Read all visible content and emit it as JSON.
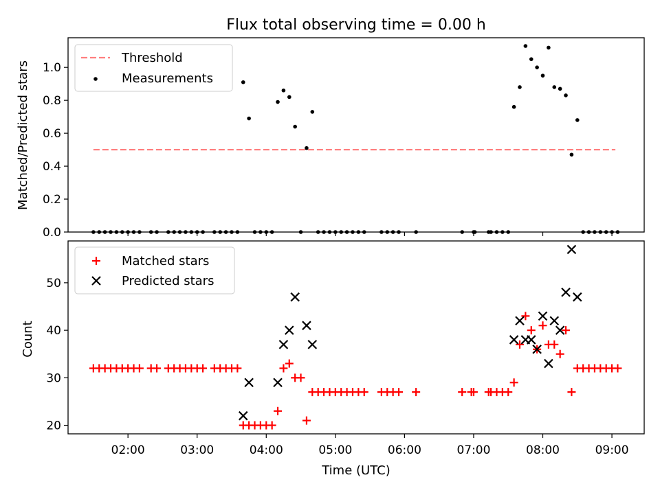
{
  "title": "Flux total observing time = 0.00 h",
  "xlabel": "Time (UTC)",
  "x_ticks": [
    "02:00",
    "03:00",
    "04:00",
    "05:00",
    "06:00",
    "07:00",
    "08:00",
    "09:00"
  ],
  "colors": {
    "threshold": "#ff7f7f",
    "measurements": "#000000",
    "matched": "#ff0000",
    "predicted": "#000000",
    "axes": "#000000",
    "background": "#ffffff"
  },
  "chart_data": [
    {
      "type": "scatter",
      "ylabel": "Matched/Predicted stars",
      "ylim": [
        0,
        1.18
      ],
      "xlim": [
        "01:08",
        "09:28"
      ],
      "y_ticks": [
        "0.0",
        "0.2",
        "0.4",
        "0.6",
        "0.8",
        "1.0"
      ],
      "legend": "top-left",
      "grid": false,
      "threshold": {
        "name": "Threshold",
        "value": 0.5,
        "x_range": [
          "01:30",
          "09:03"
        ]
      },
      "series": [
        {
          "name": "Measurements",
          "marker": "dot",
          "points": [
            [
              "01:30",
              0
            ],
            [
              "01:35",
              0
            ],
            [
              "01:40",
              0
            ],
            [
              "01:45",
              0
            ],
            [
              "01:50",
              0
            ],
            [
              "01:55",
              0
            ],
            [
              "02:00",
              0
            ],
            [
              "02:05",
              0
            ],
            [
              "02:10",
              0
            ],
            [
              "02:20",
              0
            ],
            [
              "02:25",
              0
            ],
            [
              "02:35",
              0
            ],
            [
              "02:40",
              0
            ],
            [
              "02:45",
              0
            ],
            [
              "02:50",
              0
            ],
            [
              "02:55",
              0
            ],
            [
              "03:00",
              0
            ],
            [
              "03:05",
              0
            ],
            [
              "03:15",
              0
            ],
            [
              "03:20",
              0
            ],
            [
              "03:25",
              0
            ],
            [
              "03:30",
              0
            ],
            [
              "03:35",
              0
            ],
            [
              "03:40",
              0.91
            ],
            [
              "03:45",
              0.69
            ],
            [
              "03:50",
              0
            ],
            [
              "03:55",
              0
            ],
            [
              "04:00",
              0
            ],
            [
              "04:05",
              0
            ],
            [
              "04:10",
              0.79
            ],
            [
              "04:15",
              0.86
            ],
            [
              "04:20",
              0.82
            ],
            [
              "04:25",
              0.64
            ],
            [
              "04:30",
              0
            ],
            [
              "04:35",
              0.51
            ],
            [
              "04:40",
              0.73
            ],
            [
              "04:45",
              0
            ],
            [
              "04:50",
              0
            ],
            [
              "04:55",
              0
            ],
            [
              "05:00",
              0
            ],
            [
              "05:05",
              0
            ],
            [
              "05:10",
              0
            ],
            [
              "05:15",
              0
            ],
            [
              "05:20",
              0
            ],
            [
              "05:25",
              0
            ],
            [
              "05:40",
              0
            ],
            [
              "05:45",
              0
            ],
            [
              "05:50",
              0
            ],
            [
              "05:55",
              0
            ],
            [
              "06:10",
              0
            ],
            [
              "06:50",
              0
            ],
            [
              "07:00",
              0
            ],
            [
              "07:01",
              0
            ],
            [
              "07:13",
              0
            ],
            [
              "07:15",
              0
            ],
            [
              "07:20",
              0
            ],
            [
              "07:25",
              0
            ],
            [
              "07:30",
              0
            ],
            [
              "07:35",
              0.76
            ],
            [
              "07:40",
              0.88
            ],
            [
              "07:45",
              1.13
            ],
            [
              "07:50",
              1.05
            ],
            [
              "07:55",
              1.0
            ],
            [
              "08:00",
              0.95
            ],
            [
              "08:05",
              1.12
            ],
            [
              "08:10",
              0.88
            ],
            [
              "08:15",
              0.87
            ],
            [
              "08:20",
              0.83
            ],
            [
              "08:25",
              0.47
            ],
            [
              "08:30",
              0.68
            ],
            [
              "08:35",
              0
            ],
            [
              "08:40",
              0
            ],
            [
              "08:45",
              0
            ],
            [
              "08:50",
              0
            ],
            [
              "08:55",
              0
            ],
            [
              "09:00",
              0
            ],
            [
              "09:05",
              0
            ]
          ]
        }
      ]
    },
    {
      "type": "scatter",
      "ylabel": "Count",
      "ylim": [
        18.2,
        58.8
      ],
      "xlim": [
        "01:08",
        "09:28"
      ],
      "y_ticks": [
        "20",
        "30",
        "40",
        "50"
      ],
      "legend": "top-left",
      "grid": false,
      "series": [
        {
          "name": "Matched stars",
          "marker": "plus",
          "points": [
            [
              "01:30",
              32
            ],
            [
              "01:35",
              32
            ],
            [
              "01:40",
              32
            ],
            [
              "01:45",
              32
            ],
            [
              "01:50",
              32
            ],
            [
              "01:55",
              32
            ],
            [
              "02:00",
              32
            ],
            [
              "02:05",
              32
            ],
            [
              "02:10",
              32
            ],
            [
              "02:20",
              32
            ],
            [
              "02:25",
              32
            ],
            [
              "02:35",
              32
            ],
            [
              "02:40",
              32
            ],
            [
              "02:45",
              32
            ],
            [
              "02:50",
              32
            ],
            [
              "02:55",
              32
            ],
            [
              "03:00",
              32
            ],
            [
              "03:05",
              32
            ],
            [
              "03:15",
              32
            ],
            [
              "03:20",
              32
            ],
            [
              "03:25",
              32
            ],
            [
              "03:30",
              32
            ],
            [
              "03:35",
              32
            ],
            [
              "03:40",
              20
            ],
            [
              "03:45",
              20
            ],
            [
              "03:50",
              20
            ],
            [
              "03:55",
              20
            ],
            [
              "04:00",
              20
            ],
            [
              "04:05",
              20
            ],
            [
              "04:10",
              23
            ],
            [
              "04:15",
              32
            ],
            [
              "04:20",
              33
            ],
            [
              "04:25",
              30
            ],
            [
              "04:30",
              30
            ],
            [
              "04:35",
              21
            ],
            [
              "04:40",
              27
            ],
            [
              "04:45",
              27
            ],
            [
              "04:50",
              27
            ],
            [
              "04:55",
              27
            ],
            [
              "05:00",
              27
            ],
            [
              "05:05",
              27
            ],
            [
              "05:10",
              27
            ],
            [
              "05:15",
              27
            ],
            [
              "05:20",
              27
            ],
            [
              "05:25",
              27
            ],
            [
              "05:40",
              27
            ],
            [
              "05:45",
              27
            ],
            [
              "05:50",
              27
            ],
            [
              "05:55",
              27
            ],
            [
              "06:10",
              27
            ],
            [
              "06:50",
              27
            ],
            [
              "06:58",
              27
            ],
            [
              "07:00",
              27
            ],
            [
              "07:13",
              27
            ],
            [
              "07:15",
              27
            ],
            [
              "07:20",
              27
            ],
            [
              "07:25",
              27
            ],
            [
              "07:30",
              27
            ],
            [
              "07:35",
              29
            ],
            [
              "07:40",
              37
            ],
            [
              "07:45",
              43
            ],
            [
              "07:50",
              40
            ],
            [
              "07:55",
              36
            ],
            [
              "08:00",
              41
            ],
            [
              "08:05",
              37
            ],
            [
              "08:10",
              37
            ],
            [
              "08:15",
              35
            ],
            [
              "08:20",
              40
            ],
            [
              "08:25",
              27
            ],
            [
              "08:30",
              32
            ],
            [
              "08:35",
              32
            ],
            [
              "08:40",
              32
            ],
            [
              "08:45",
              32
            ],
            [
              "08:50",
              32
            ],
            [
              "08:55",
              32
            ],
            [
              "09:00",
              32
            ],
            [
              "09:05",
              32
            ]
          ]
        },
        {
          "name": "Predicted stars",
          "marker": "x",
          "points": [
            [
              "03:40",
              22
            ],
            [
              "03:45",
              29
            ],
            [
              "04:10",
              29
            ],
            [
              "04:15",
              37
            ],
            [
              "04:20",
              40
            ],
            [
              "04:25",
              47
            ],
            [
              "04:35",
              41
            ],
            [
              "04:40",
              37
            ],
            [
              "07:35",
              38
            ],
            [
              "07:40",
              42
            ],
            [
              "07:45",
              38
            ],
            [
              "07:50",
              38
            ],
            [
              "07:55",
              36
            ],
            [
              "08:00",
              43
            ],
            [
              "08:05",
              33
            ],
            [
              "08:10",
              42
            ],
            [
              "08:15",
              40
            ],
            [
              "08:20",
              48
            ],
            [
              "08:25",
              57
            ],
            [
              "08:30",
              47
            ]
          ]
        }
      ]
    }
  ]
}
